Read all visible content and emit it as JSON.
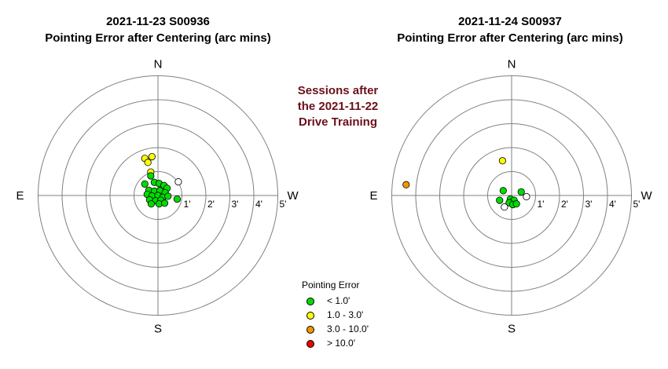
{
  "charts": [
    {
      "title_line1": "2021-11-23 S00936",
      "title_line2": "Pointing Error after Centering (arc mins)"
    },
    {
      "title_line1": "2021-11-24 S00937",
      "title_line2": "Pointing Error after Centering (arc mins)"
    }
  ],
  "annotation": {
    "line1": "Sessions after",
    "line2": "the 2021-11-22",
    "line3": "Drive Training",
    "color": "#6b0f1a"
  },
  "compass": {
    "N": "N",
    "S": "S",
    "E": "E",
    "W": "W"
  },
  "ring_labels": [
    "1'",
    "2'",
    "3'",
    "4'",
    "5'"
  ],
  "legend": {
    "title": "Pointing Error",
    "items": [
      {
        "label": "< 1.0'",
        "color": "#00dd00",
        "key": "green"
      },
      {
        "label": "1.0 - 3.0'",
        "color": "#ffff00",
        "key": "yellow"
      },
      {
        "label": "3.0 - 10.0'",
        "color": "#ee9900",
        "key": "orange"
      },
      {
        "label": "> 10.0'",
        "color": "#ee0000",
        "key": "red"
      },
      {
        "label": "",
        "color": "#ffffff",
        "key": "white"
      }
    ]
  },
  "chart_data": [
    {
      "type": "scatter",
      "title": "2021-11-23 S00936 Pointing Error after Centering (arc mins)",
      "coordinate_system": "polar offset (arc min); +x toward W, +y toward N",
      "rings_arcmin": [
        1,
        2,
        3,
        4,
        5
      ],
      "points": [
        {
          "x": -0.55,
          "y": 1.55,
          "cat": "yellow"
        },
        {
          "x": -0.25,
          "y": 1.62,
          "cat": "yellow"
        },
        {
          "x": -0.42,
          "y": 1.38,
          "cat": "yellow"
        },
        {
          "x": -0.3,
          "y": 0.98,
          "cat": "yellow"
        },
        {
          "x": 0.85,
          "y": 0.57,
          "cat": "white"
        },
        {
          "x": 0.8,
          "y": -0.15,
          "cat": "green"
        },
        {
          "x": -0.3,
          "y": 0.82,
          "cat": "green"
        },
        {
          "x": -0.55,
          "y": 0.48,
          "cat": "green"
        },
        {
          "x": -0.15,
          "y": 0.55,
          "cat": "green"
        },
        {
          "x": 0.05,
          "y": 0.5,
          "cat": "green"
        },
        {
          "x": 0.25,
          "y": 0.42,
          "cat": "green"
        },
        {
          "x": 0.38,
          "y": 0.3,
          "cat": "green"
        },
        {
          "x": -0.38,
          "y": 0.22,
          "cat": "green"
        },
        {
          "x": -0.15,
          "y": 0.18,
          "cat": "green"
        },
        {
          "x": 0.08,
          "y": 0.2,
          "cat": "green"
        },
        {
          "x": 0.3,
          "y": 0.12,
          "cat": "green"
        },
        {
          "x": -0.45,
          "y": 0.05,
          "cat": "green"
        },
        {
          "x": -0.25,
          "y": -0.02,
          "cat": "green"
        },
        {
          "x": 0.0,
          "y": 0.0,
          "cat": "green"
        },
        {
          "x": 0.2,
          "y": -0.08,
          "cat": "green"
        },
        {
          "x": 0.42,
          "y": -0.03,
          "cat": "green"
        },
        {
          "x": -0.35,
          "y": -0.18,
          "cat": "green"
        },
        {
          "x": -0.1,
          "y": -0.22,
          "cat": "green"
        },
        {
          "x": 0.12,
          "y": -0.2,
          "cat": "green"
        },
        {
          "x": -0.28,
          "y": -0.35,
          "cat": "green"
        },
        {
          "x": 0.05,
          "y": -0.35,
          "cat": "green"
        },
        {
          "x": 0.28,
          "y": -0.32,
          "cat": "green"
        }
      ]
    },
    {
      "type": "scatter",
      "title": "2021-11-24 S00937 Pointing Error after Centering (arc mins)",
      "coordinate_system": "polar offset (arc min); +x toward W, +y toward N",
      "rings_arcmin": [
        1,
        2,
        3,
        4,
        5
      ],
      "points": [
        {
          "x": -4.4,
          "y": 0.45,
          "cat": "orange"
        },
        {
          "x": -0.38,
          "y": 1.45,
          "cat": "yellow"
        },
        {
          "x": -0.35,
          "y": 0.2,
          "cat": "green"
        },
        {
          "x": -0.5,
          "y": -0.2,
          "cat": "green"
        },
        {
          "x": 0.4,
          "y": 0.15,
          "cat": "green"
        },
        {
          "x": -0.05,
          "y": -0.15,
          "cat": "green"
        },
        {
          "x": 0.1,
          "y": -0.2,
          "cat": "green"
        },
        {
          "x": -0.1,
          "y": -0.3,
          "cat": "green"
        },
        {
          "x": 0.05,
          "y": -0.38,
          "cat": "green"
        },
        {
          "x": 0.2,
          "y": -0.35,
          "cat": "green"
        },
        {
          "x": 0.62,
          "y": -0.05,
          "cat": "white"
        },
        {
          "x": -0.3,
          "y": -0.48,
          "cat": "white"
        }
      ]
    }
  ]
}
